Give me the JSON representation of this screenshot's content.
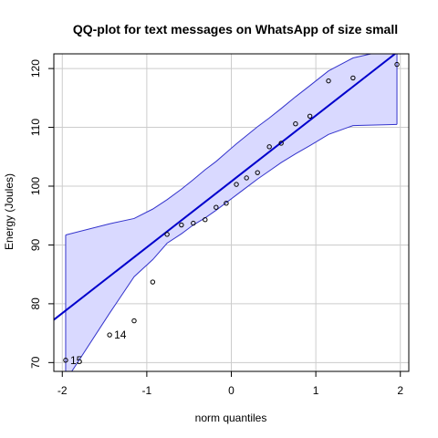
{
  "chart_data": {
    "type": "scatter",
    "title": "QQ-plot for text messages on WhatsApp of size small",
    "xlabel": "norm quantiles",
    "ylabel": "Energy (Joules)",
    "xlim": [
      -2.1,
      2.1
    ],
    "ylim": [
      68.5,
      122.5
    ],
    "xticks": [
      -2,
      -1,
      0,
      1,
      2
    ],
    "yticks": [
      70,
      80,
      90,
      100,
      110,
      120
    ],
    "grid": true,
    "colors": {
      "line": "#0000cc",
      "band_fill": "#d9d9ff",
      "band_stroke": "#3333cc",
      "grid": "#cccccc",
      "points": "#000000"
    },
    "series": [
      {
        "points": [
          {
            "x": -1.96,
            "y": 70.4,
            "label": "15"
          },
          {
            "x": -1.44,
            "y": 74.7,
            "label": "14"
          },
          {
            "x": -1.15,
            "y": 77.1
          },
          {
            "x": -0.93,
            "y": 83.7
          },
          {
            "x": -0.76,
            "y": 91.8
          },
          {
            "x": -0.59,
            "y": 93.4
          },
          {
            "x": -0.45,
            "y": 93.7
          },
          {
            "x": -0.31,
            "y": 94.3
          },
          {
            "x": -0.18,
            "y": 96.4
          },
          {
            "x": -0.06,
            "y": 97.1
          },
          {
            "x": 0.06,
            "y": 100.3
          },
          {
            "x": 0.18,
            "y": 101.4
          },
          {
            "x": 0.31,
            "y": 102.3
          },
          {
            "x": 0.45,
            "y": 106.7
          },
          {
            "x": 0.59,
            "y": 107.3
          },
          {
            "x": 0.76,
            "y": 110.6
          },
          {
            "x": 0.93,
            "y": 111.9
          },
          {
            "x": 1.15,
            "y": 117.9
          },
          {
            "x": 1.44,
            "y": 118.4
          },
          {
            "x": 1.96,
            "y": 120.7
          }
        ]
      }
    ],
    "reference_line": {
      "intercept": 100.8,
      "slope": 11.2
    },
    "confidence_band": {
      "x": [
        -1.96,
        -1.44,
        -1.15,
        -0.93,
        -0.76,
        -0.59,
        -0.45,
        -0.31,
        -0.18,
        -0.06,
        0.06,
        0.18,
        0.31,
        0.45,
        0.59,
        0.76,
        0.93,
        1.15,
        1.44,
        1.96
      ],
      "lower": [
        66.9,
        78.4,
        84.6,
        87.5,
        90.3,
        91.9,
        93.4,
        94.6,
        95.9,
        97.2,
        98.5,
        99.8,
        101.2,
        102.6,
        104.0,
        105.5,
        106.9,
        108.8,
        110.3,
        110.5
      ],
      "upper": [
        91.7,
        93.6,
        94.5,
        96.1,
        97.7,
        99.5,
        101.1,
        102.8,
        104.2,
        105.7,
        107.2,
        108.6,
        110.1,
        111.6,
        113.2,
        115.2,
        117.1,
        119.6,
        121.8,
        123.5
      ]
    }
  }
}
